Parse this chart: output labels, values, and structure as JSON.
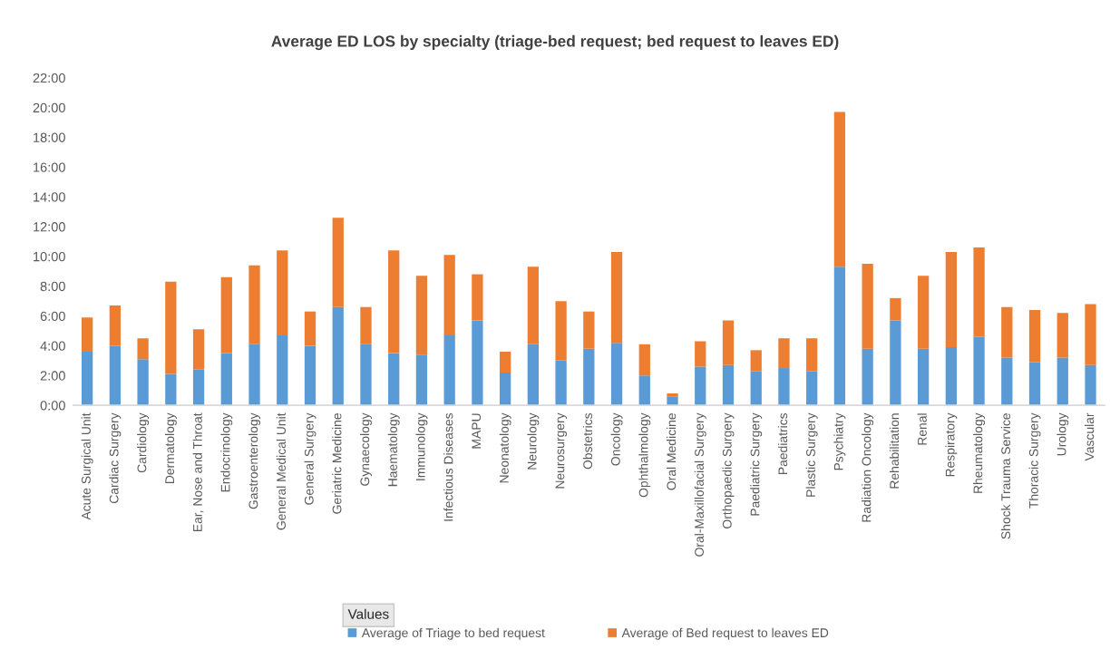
{
  "chart_data": {
    "type": "bar",
    "stacked": true,
    "title": "Average ED LOS by specialty (triage-bed request; bed request to leaves ED)",
    "categories": [
      "Acute Surgical Unit",
      "Cardiac Surgery",
      "Cardiology",
      "Dermatology",
      "Ear, Nose and Throat",
      "Endocrinology",
      "Gastroenterology",
      "General Medical Unit",
      "General Surgery",
      "Geriatric Medicine",
      "Gynaecology",
      "Haematology",
      "Immunology",
      "Infectious Diseases",
      "MAPU",
      "Neonatology",
      "Neurology",
      "Neurosurgery",
      "Obstetrics",
      "Oncology",
      "Ophthalmology",
      "Oral Medicine",
      "Oral-Maxillofacial Surgery",
      "Orthopaedic Surgery",
      "Paediatric Surgery",
      "Paediatrics",
      "Plastic Surgery",
      "Psychiatry",
      "Radiation Oncology",
      "Rehabilitation",
      "Renal",
      "Respiratory",
      "Rheumatology",
      "Shock Trauma Service",
      "Thoracic Surgery",
      "Urology",
      "Vascular"
    ],
    "series": [
      {
        "name": "Average of Triage to bed request",
        "color": "#5b9bd5",
        "values": [
          3.6,
          4.0,
          3.1,
          2.1,
          2.4,
          3.5,
          4.1,
          4.7,
          4.0,
          6.6,
          4.1,
          3.5,
          3.4,
          4.7,
          5.7,
          2.2,
          4.1,
          3.0,
          3.8,
          4.2,
          2.0,
          0.6,
          2.6,
          2.7,
          2.3,
          2.5,
          2.3,
          9.3,
          3.8,
          5.7,
          3.8,
          3.9,
          4.6,
          3.2,
          2.9,
          3.2,
          2.7
        ]
      },
      {
        "name": "Average of Bed request to leaves ED",
        "color": "#ed7d31",
        "values": [
          2.3,
          2.7,
          1.4,
          6.2,
          2.7,
          5.1,
          5.3,
          5.7,
          2.3,
          6.0,
          2.5,
          6.9,
          5.3,
          5.4,
          3.1,
          1.4,
          5.2,
          4.0,
          2.5,
          6.1,
          2.1,
          0.2,
          1.7,
          3.0,
          1.4,
          2.0,
          2.2,
          10.4,
          5.7,
          1.5,
          4.9,
          6.4,
          6.0,
          3.4,
          3.5,
          3.0,
          4.1
        ]
      }
    ],
    "ylim": [
      0,
      22
    ],
    "yticks": [
      {
        "value": 0,
        "label": "0:00"
      },
      {
        "value": 2,
        "label": "2:00"
      },
      {
        "value": 4,
        "label": "4:00"
      },
      {
        "value": 6,
        "label": "6:00"
      },
      {
        "value": 8,
        "label": "8:00"
      },
      {
        "value": 10,
        "label": "10:00"
      },
      {
        "value": 12,
        "label": "12:00"
      },
      {
        "value": 14,
        "label": "14:00"
      },
      {
        "value": 16,
        "label": "16:00"
      },
      {
        "value": 18,
        "label": "18:00"
      },
      {
        "value": 20,
        "label": "20:00"
      },
      {
        "value": 22,
        "label": "22:00"
      }
    ],
    "legend": "bottom",
    "legend_title": "Values",
    "grid": false
  }
}
